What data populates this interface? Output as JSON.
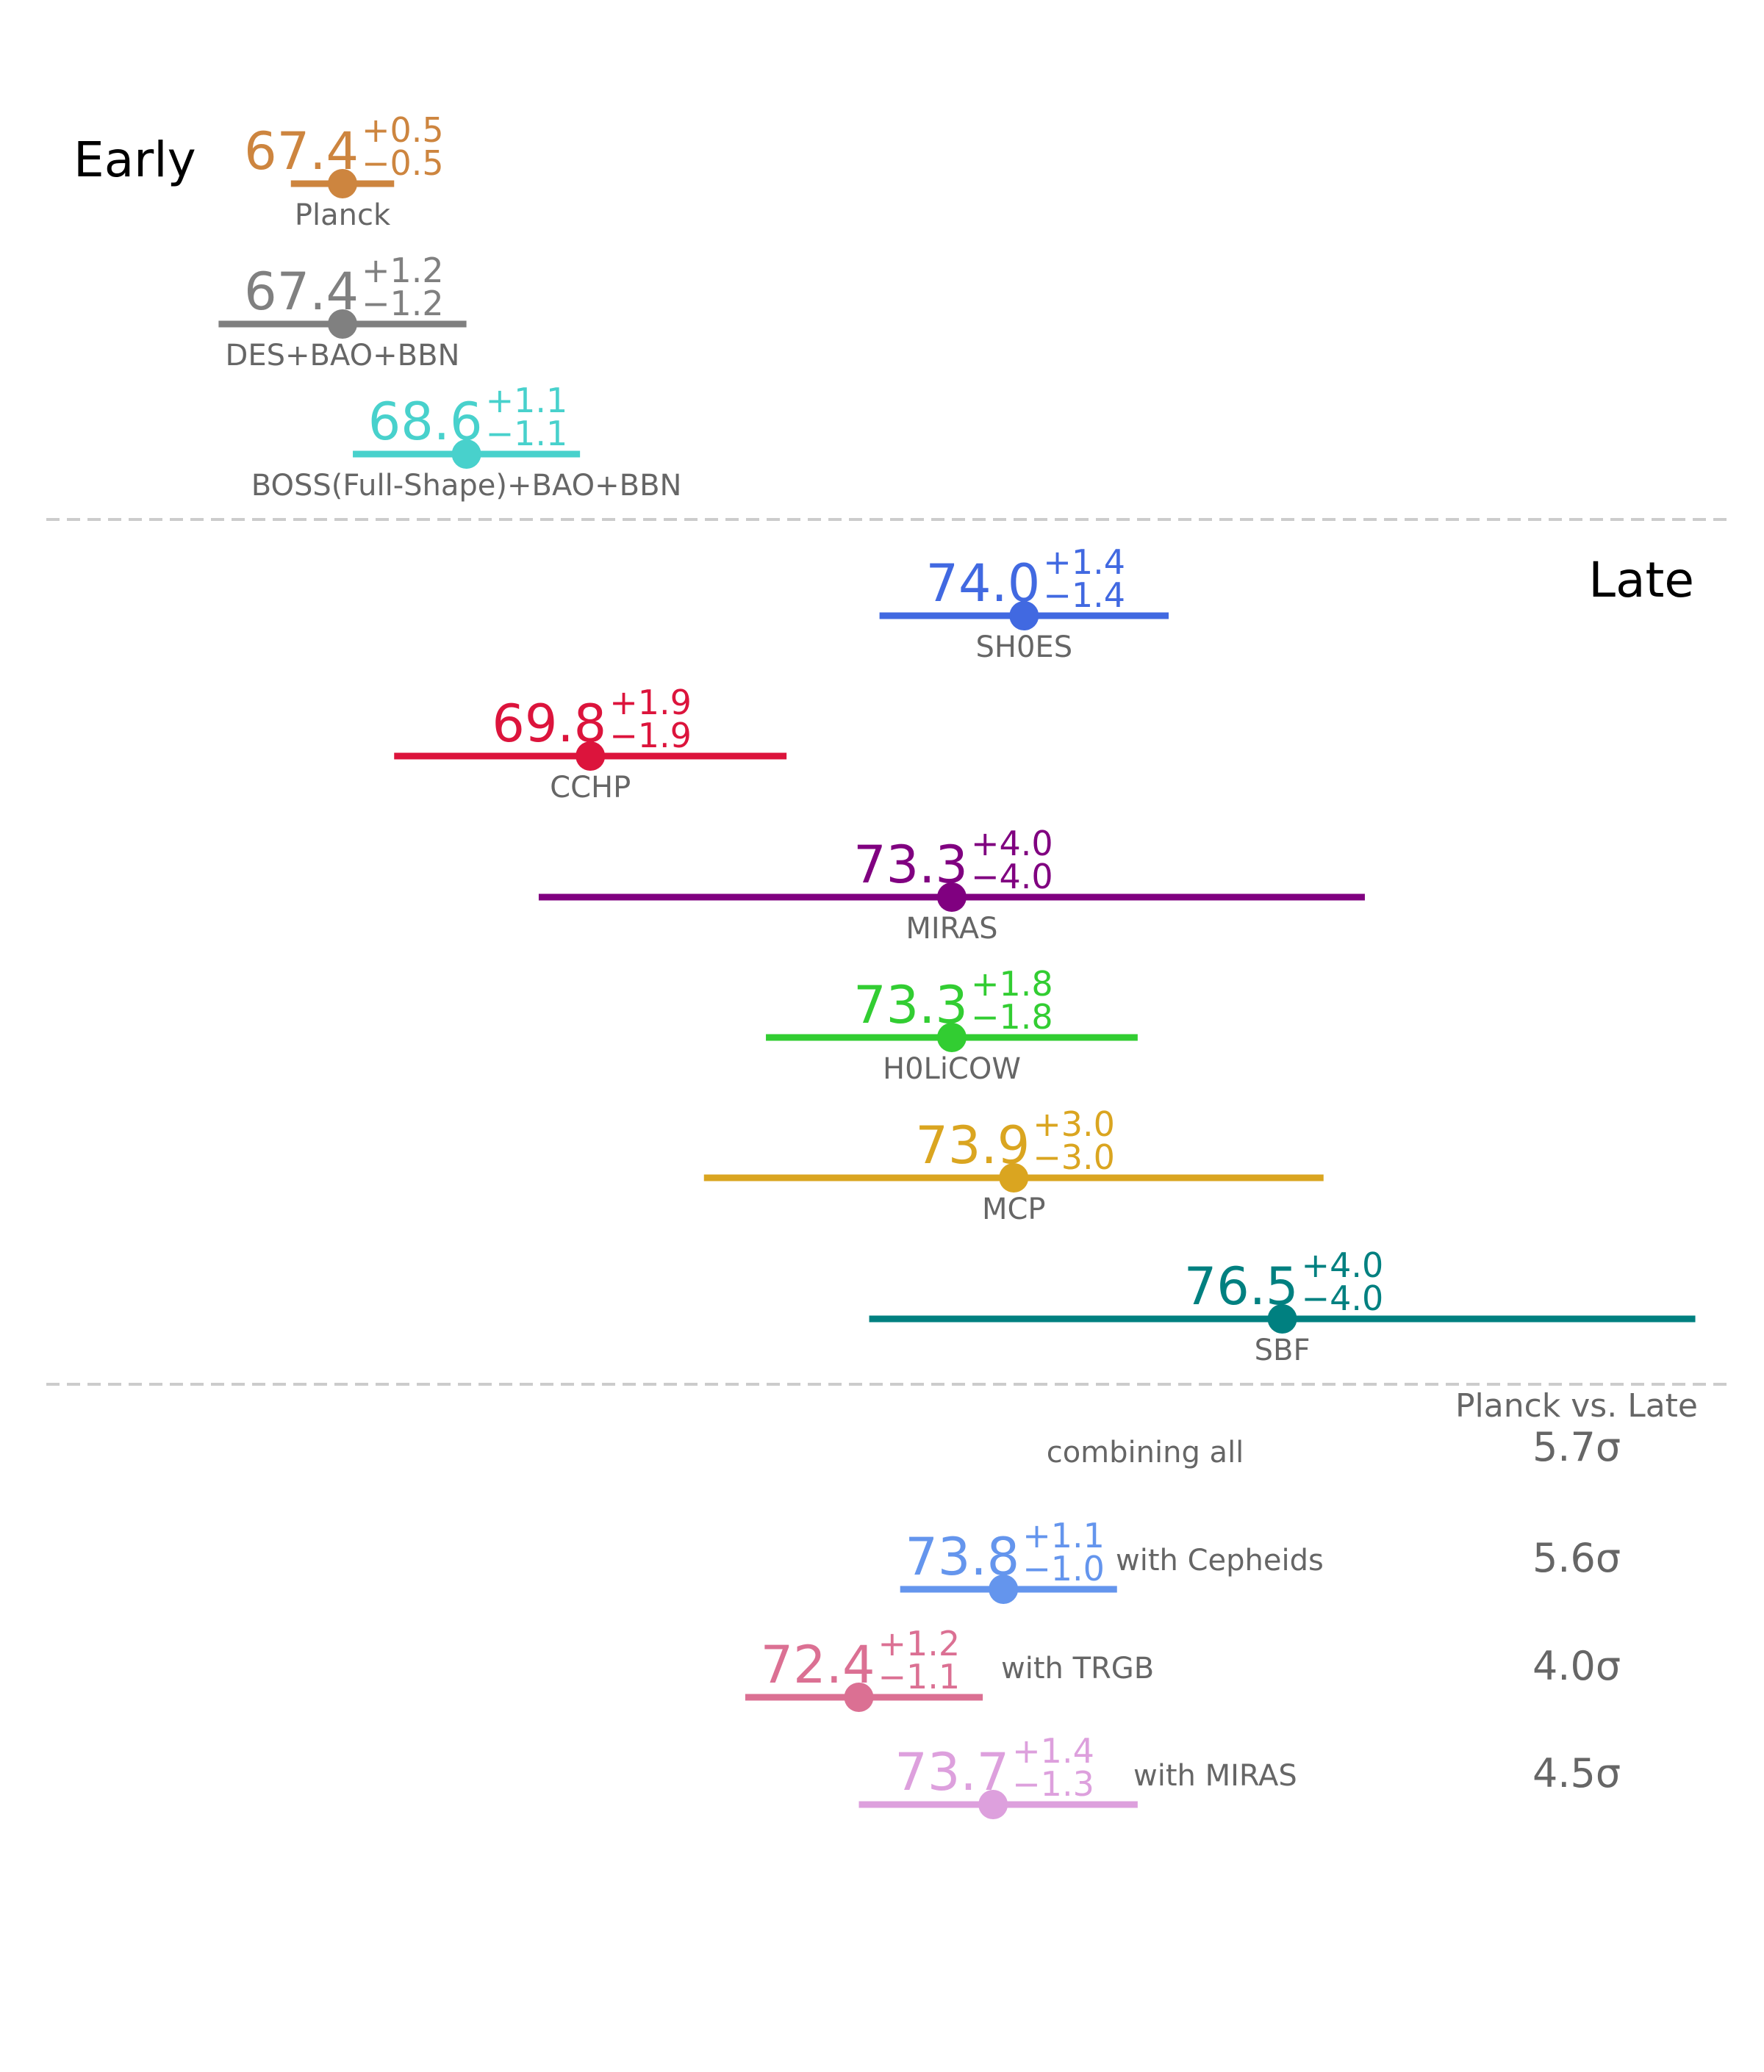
{
  "sections": {
    "early_label": "Early",
    "late_label": "Late",
    "planck_vs_late_label": "Planck vs. Late",
    "combining_all_label": "combining all",
    "combining_all_sigma": "5.7σ"
  },
  "colors": {
    "name_text": "#666666",
    "section_text": "#000000",
    "divider": "#cccccc"
  },
  "chart_data": {
    "type": "errorbar",
    "title": "",
    "xlabel": "",
    "ylabel": "",
    "grid": false,
    "xlim": [
      64.4,
      80.5
    ],
    "groups": [
      {
        "name": "Early",
        "measurements": [
          {
            "label": "Planck",
            "value": 67.4,
            "value_text": "67.4",
            "plus": "+0.5",
            "minus": "−0.5",
            "err_plus": 0.5,
            "err_minus": 0.5,
            "color": "#cd853f"
          },
          {
            "label": "DES+BAO+BBN",
            "value": 67.4,
            "value_text": "67.4",
            "plus": "+1.2",
            "minus": "−1.2",
            "err_plus": 1.2,
            "err_minus": 1.2,
            "color": "#808080"
          },
          {
            "label": "BOSS(Full-Shape)+BAO+BBN",
            "value": 68.6,
            "value_text": "68.6",
            "plus": "+1.1",
            "minus": "−1.1",
            "err_plus": 1.1,
            "err_minus": 1.1,
            "color": "#48d1cc"
          }
        ]
      },
      {
        "name": "Late",
        "measurements": [
          {
            "label": "SH0ES",
            "value": 74.0,
            "value_text": "74.0",
            "plus": "+1.4",
            "minus": "−1.4",
            "err_plus": 1.4,
            "err_minus": 1.4,
            "color": "#4169e1"
          },
          {
            "label": "CCHP",
            "value": 69.8,
            "value_text": "69.8",
            "plus": "+1.9",
            "minus": "−1.9",
            "err_plus": 1.9,
            "err_minus": 1.9,
            "color": "#dc143c"
          },
          {
            "label": "MIRAS",
            "value": 73.3,
            "value_text": "73.3",
            "plus": "+4.0",
            "minus": "−4.0",
            "err_plus": 4.0,
            "err_minus": 4.0,
            "color": "#800080"
          },
          {
            "label": "H0LiCOW",
            "value": 73.3,
            "value_text": "73.3",
            "plus": "+1.8",
            "minus": "−1.8",
            "err_plus": 1.8,
            "err_minus": 1.8,
            "color": "#32cd32"
          },
          {
            "label": "MCP",
            "value": 73.9,
            "value_text": "73.9",
            "plus": "+3.0",
            "minus": "−3.0",
            "err_plus": 3.0,
            "err_minus": 3.0,
            "color": "#daa520"
          },
          {
            "label": "SBF",
            "value": 76.5,
            "value_text": "76.5",
            "plus": "+4.0",
            "minus": "−4.0",
            "err_plus": 4.0,
            "err_minus": 4.0,
            "color": "#008080"
          }
        ]
      },
      {
        "name": "combining all",
        "measurements": [
          {
            "label": "with Cepheids",
            "value": 73.8,
            "value_text": "73.8",
            "plus": "+1.1",
            "minus": "−1.0",
            "err_plus": 1.1,
            "err_minus": 1.0,
            "color": "#6495ed",
            "sigma": "5.6σ"
          },
          {
            "label": "with TRGB",
            "value": 72.4,
            "value_text": "72.4",
            "plus": "+1.2",
            "minus": "−1.1",
            "err_plus": 1.2,
            "err_minus": 1.1,
            "color": "#db7093",
            "sigma": "4.0σ"
          },
          {
            "label": "with MIRAS",
            "value": 73.7,
            "value_text": "73.7",
            "plus": "+1.4",
            "minus": "−1.3",
            "err_plus": 1.4,
            "err_minus": 1.3,
            "color": "#dda0dd",
            "sigma": "4.5σ"
          }
        ]
      }
    ]
  }
}
